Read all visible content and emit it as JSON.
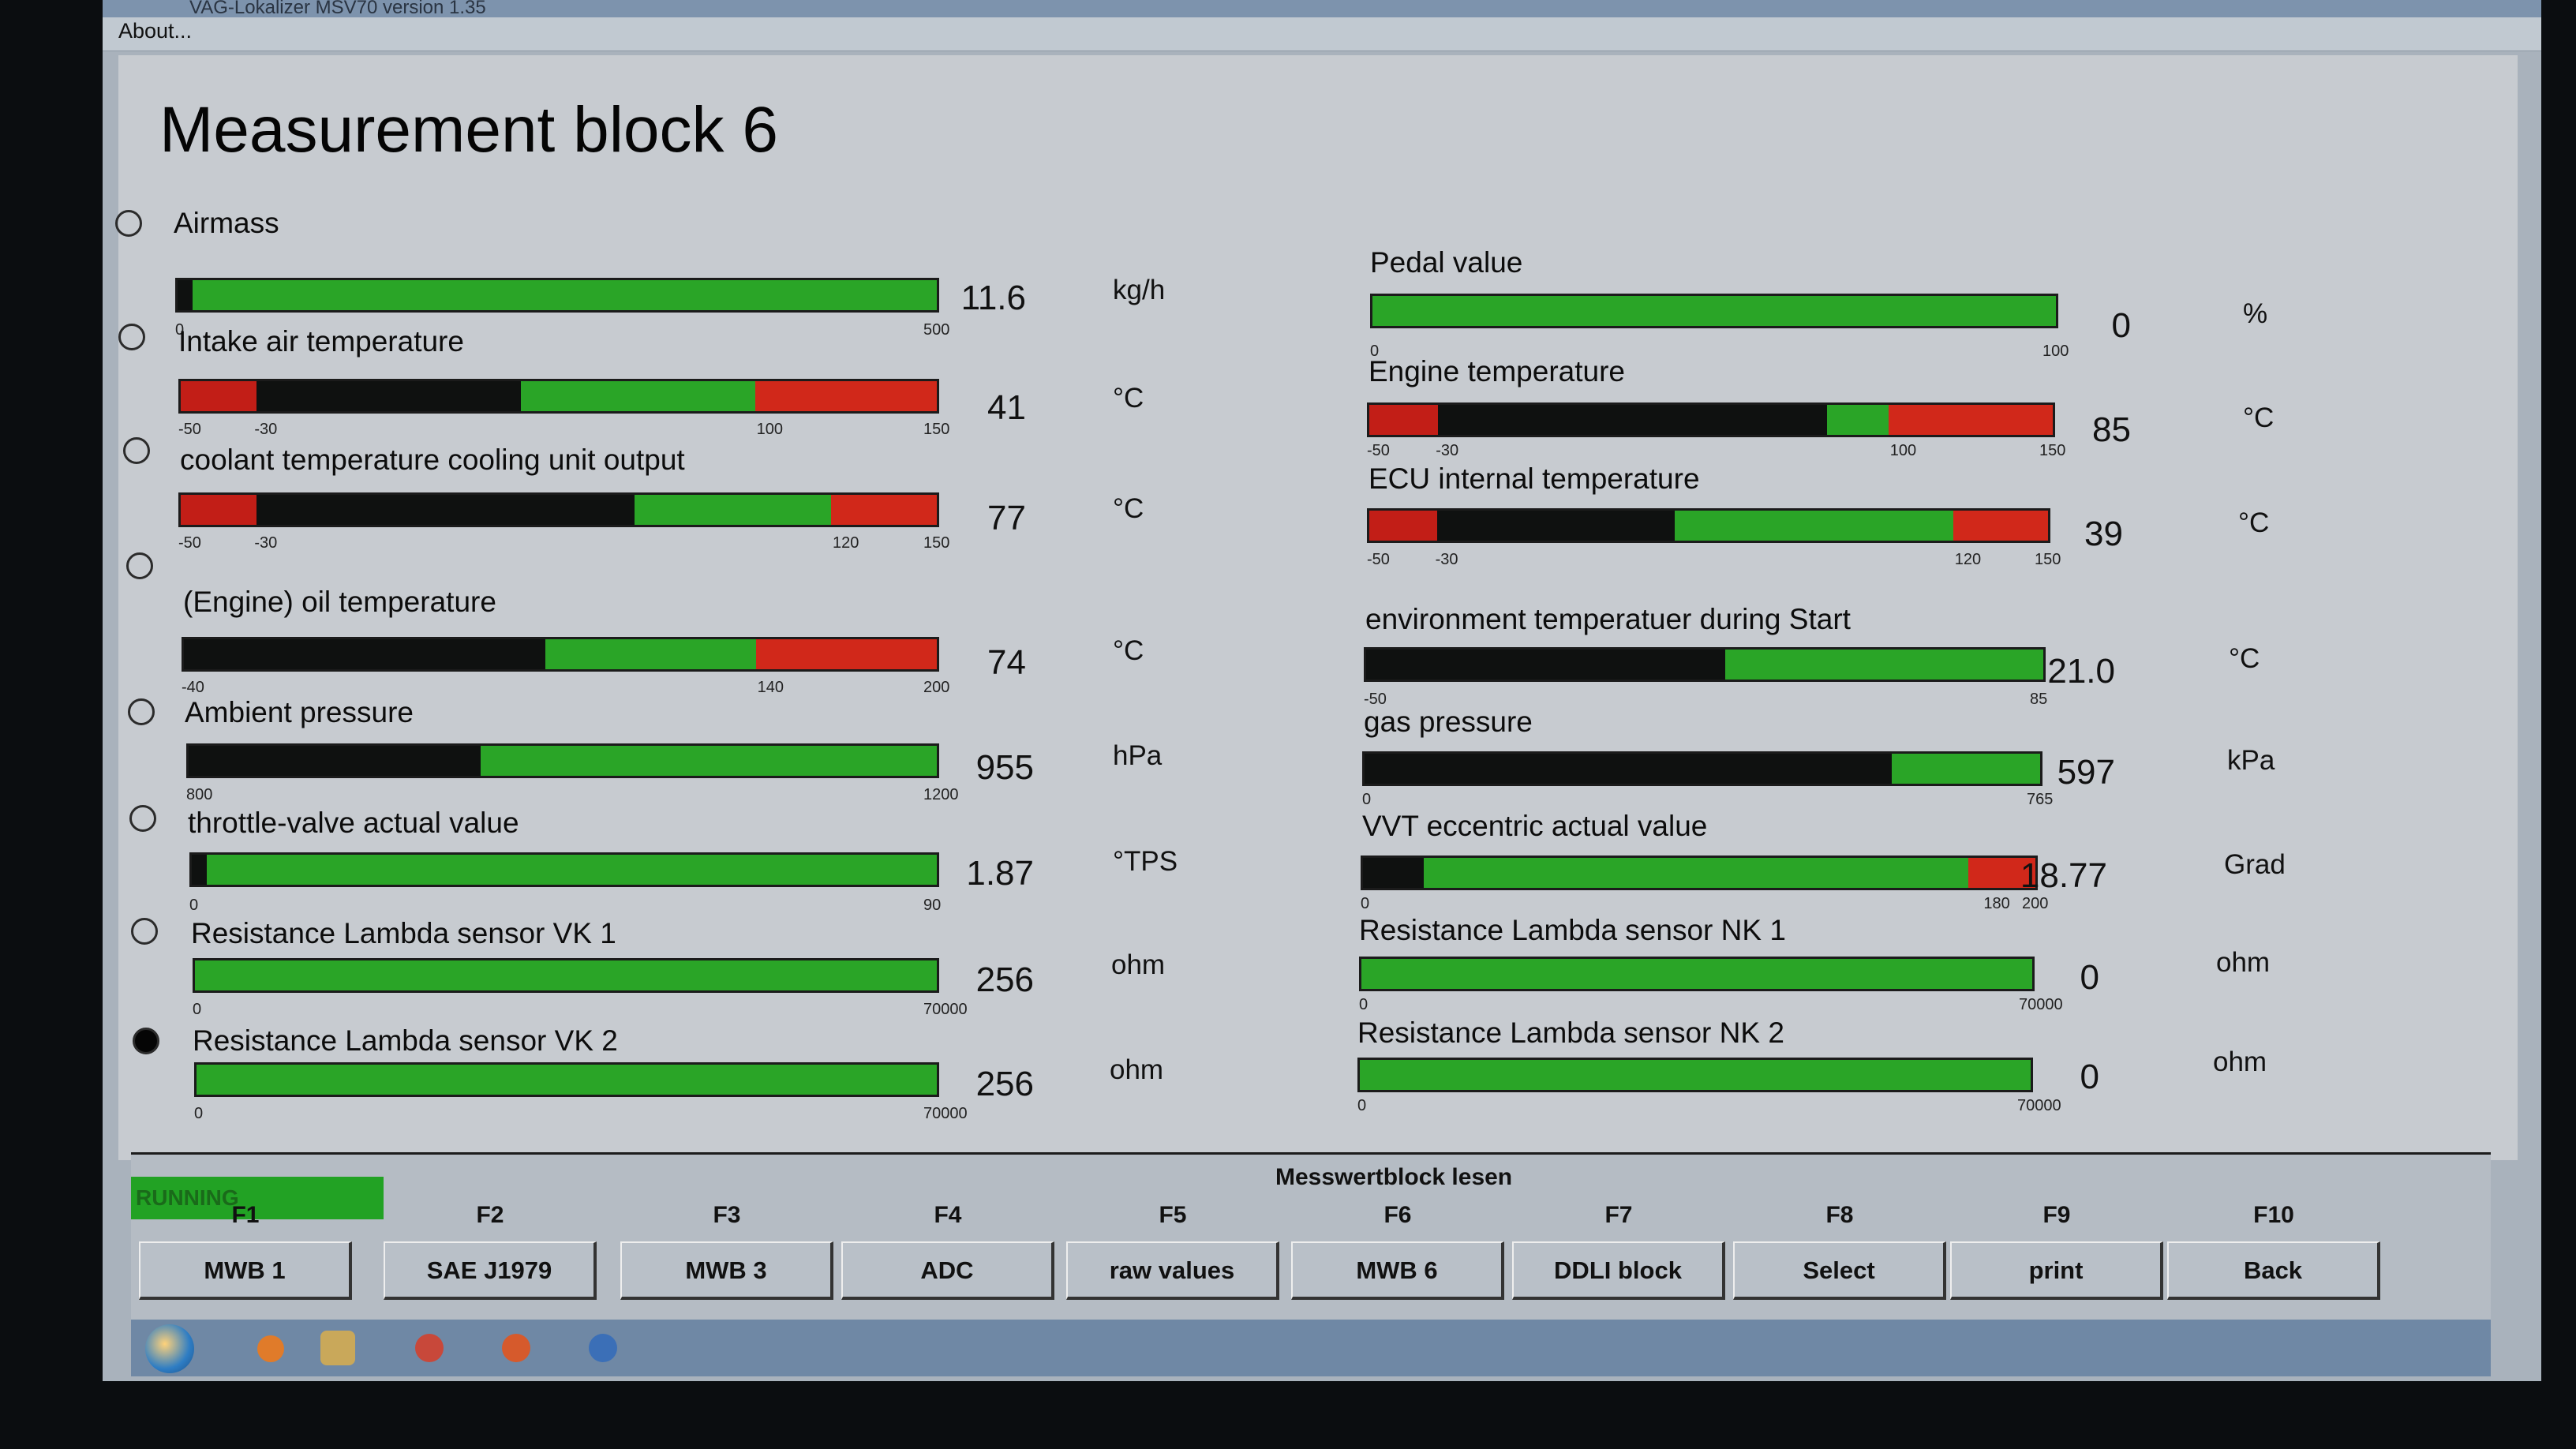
{
  "window": {
    "title": "VAG-Lokalizer MSV70 version 1.35",
    "menu_about": "About..."
  },
  "page_title": "Measurement block 6",
  "left": [
    {
      "label": "Airmass",
      "value": "11.6",
      "unit": "kg/h",
      "ticks": [
        "0",
        "500"
      ]
    },
    {
      "label": "Intake air temperature",
      "value": "41",
      "unit": "°C",
      "ticks": [
        "-50",
        "-30",
        "100",
        "150"
      ]
    },
    {
      "label": "coolant temperature cooling unit output",
      "value": "77",
      "unit": "°C",
      "ticks": [
        "-50",
        "-30",
        "120",
        "150"
      ]
    },
    {
      "label": "(Engine) oil temperature",
      "value": "74",
      "unit": "°C",
      "ticks": [
        "-40",
        "140",
        "200"
      ]
    },
    {
      "label": "Ambient pressure",
      "value": "955",
      "unit": "hPa",
      "ticks": [
        "800",
        "1200"
      ]
    },
    {
      "label": "throttle-valve actual value",
      "value": "1.87",
      "unit": "°TPS",
      "ticks": [
        "0",
        "90"
      ]
    },
    {
      "label": "Resistance Lambda sensor VK 1",
      "value": "256",
      "unit": "ohm",
      "ticks": [
        "0",
        "70000"
      ]
    },
    {
      "label": "Resistance Lambda sensor VK 2",
      "value": "256",
      "unit": "ohm",
      "ticks": [
        "0",
        "70000"
      ]
    }
  ],
  "right": [
    {
      "label": "Pedal value",
      "value": "0",
      "unit": "%",
      "ticks": [
        "0",
        "100"
      ]
    },
    {
      "label": "Engine temperature",
      "value": "85",
      "unit": "°C",
      "ticks": [
        "-50",
        "-30",
        "100",
        "150"
      ]
    },
    {
      "label": "ECU internal temperature",
      "value": "39",
      "unit": "°C",
      "ticks": [
        "-50",
        "-30",
        "120",
        "150"
      ]
    },
    {
      "label": "environment temperatuer during Start",
      "value": "21.0",
      "unit": "°C",
      "ticks": [
        "-50",
        "85"
      ]
    },
    {
      "label": "gas pressure",
      "value": "597",
      "unit": "kPa",
      "ticks": [
        "0",
        "765"
      ]
    },
    {
      "label": "VVT eccentric actual value",
      "value": "18.77",
      "unit": "Grad",
      "ticks": [
        "0",
        "180",
        "200"
      ]
    },
    {
      "label": "Resistance Lambda sensor NK 1",
      "value": "0",
      "unit": "ohm",
      "ticks": [
        "0",
        "70000"
      ]
    },
    {
      "label": "Resistance Lambda sensor NK 2",
      "value": "0",
      "unit": "ohm",
      "ticks": [
        "0",
        "70000"
      ]
    }
  ],
  "status": "RUNNING",
  "footer_caption": "Messwertblock lesen",
  "fkeys": [
    {
      "key": "F1",
      "label": "MWB 1"
    },
    {
      "key": "F2",
      "label": "SAE J1979"
    },
    {
      "key": "F3",
      "label": "MWB 3"
    },
    {
      "key": "F4",
      "label": "ADC"
    },
    {
      "key": "F5",
      "label": "raw values"
    },
    {
      "key": "F6",
      "label": "MWB 6"
    },
    {
      "key": "F7",
      "label": "DDLI block"
    },
    {
      "key": "F8",
      "label": "Select"
    },
    {
      "key": "F9",
      "label": "print"
    },
    {
      "key": "F10",
      "label": "Back"
    }
  ],
  "bar_levels": {
    "left": [
      0.02,
      0.45,
      0.6,
      0.48,
      0.39,
      0.02,
      0.0,
      0.0
    ],
    "right": [
      0.0,
      0.67,
      0.45,
      0.53,
      0.78,
      0.09,
      0.0,
      0.0
    ]
  },
  "colors": {
    "bar_green": "#2aa527",
    "bar_red": "#d1281a",
    "bar_black": "#0f1110"
  },
  "icons": [
    "windows-start-icon",
    "media-player-icon",
    "folder-icon",
    "chrome-icon",
    "firefox-icon",
    "app-icon"
  ]
}
